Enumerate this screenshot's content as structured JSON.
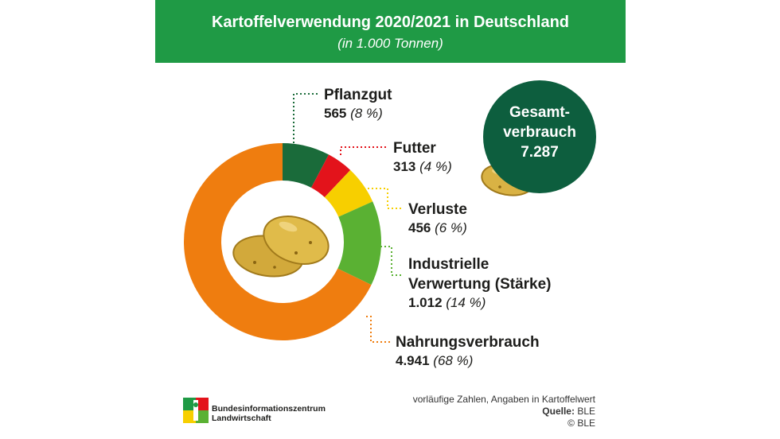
{
  "header": {
    "title": "Kartoffelverwendung 2020/2021 in Deutschland",
    "subtitle": "(in 1.000 Tonnen)"
  },
  "chart_data": {
    "type": "pie",
    "title": "Kartoffelverwendung 2020/2021 in Deutschland",
    "subtitle": "(in 1.000 Tonnen)",
    "donut": true,
    "categories": [
      "Pflanzgut",
      "Futter",
      "Verluste",
      "Industrielle Verwertung (Stärke)",
      "Nahrungsverbrauch"
    ],
    "values": [
      565,
      313,
      456,
      1012,
      4941
    ],
    "value_labels": [
      "565",
      "313",
      "456",
      "1.012",
      "4.941"
    ],
    "percent_labels": [
      "(8 %)",
      "(4 %)",
      "(6 %)",
      "(14 %)",
      "(68 %)"
    ],
    "colors": [
      "#1a6b3a",
      "#e3131b",
      "#f7cf00",
      "#5ab133",
      "#ef7d0f"
    ],
    "total_label": "Gesamt-verbrauch",
    "total_value": "7.287"
  },
  "labels": {
    "pflanzgut": {
      "name": "Pflanzgut",
      "value": "565",
      "pct": "(8 %)"
    },
    "futter": {
      "name": "Futter",
      "value": "313",
      "pct": "(4 %)"
    },
    "verluste": {
      "name": "Verluste",
      "value": "456",
      "pct": "(6 %)"
    },
    "industrie": {
      "name_line1": "Industrielle",
      "name_line2": "Verwertung (Stärke)",
      "value": "1.012",
      "pct": "(14 %)"
    },
    "nahrung": {
      "name": "Nahrungsverbrauch",
      "value": "4.941",
      "pct": "(68 %)"
    }
  },
  "total": {
    "label": "Gesamt-verbrauch",
    "value": "7.287"
  },
  "footer": {
    "note": "vorläufige Zahlen, Angaben in Kartoffelwert",
    "source_label": "Quelle:",
    "source": "BLE",
    "copyright": "© BLE"
  },
  "logo": {
    "line1": "Bundesinformationszentrum",
    "line2": "Landwirtschaft"
  },
  "icons": {
    "potato": "potato-icon",
    "logo": "ble-logo-icon"
  }
}
